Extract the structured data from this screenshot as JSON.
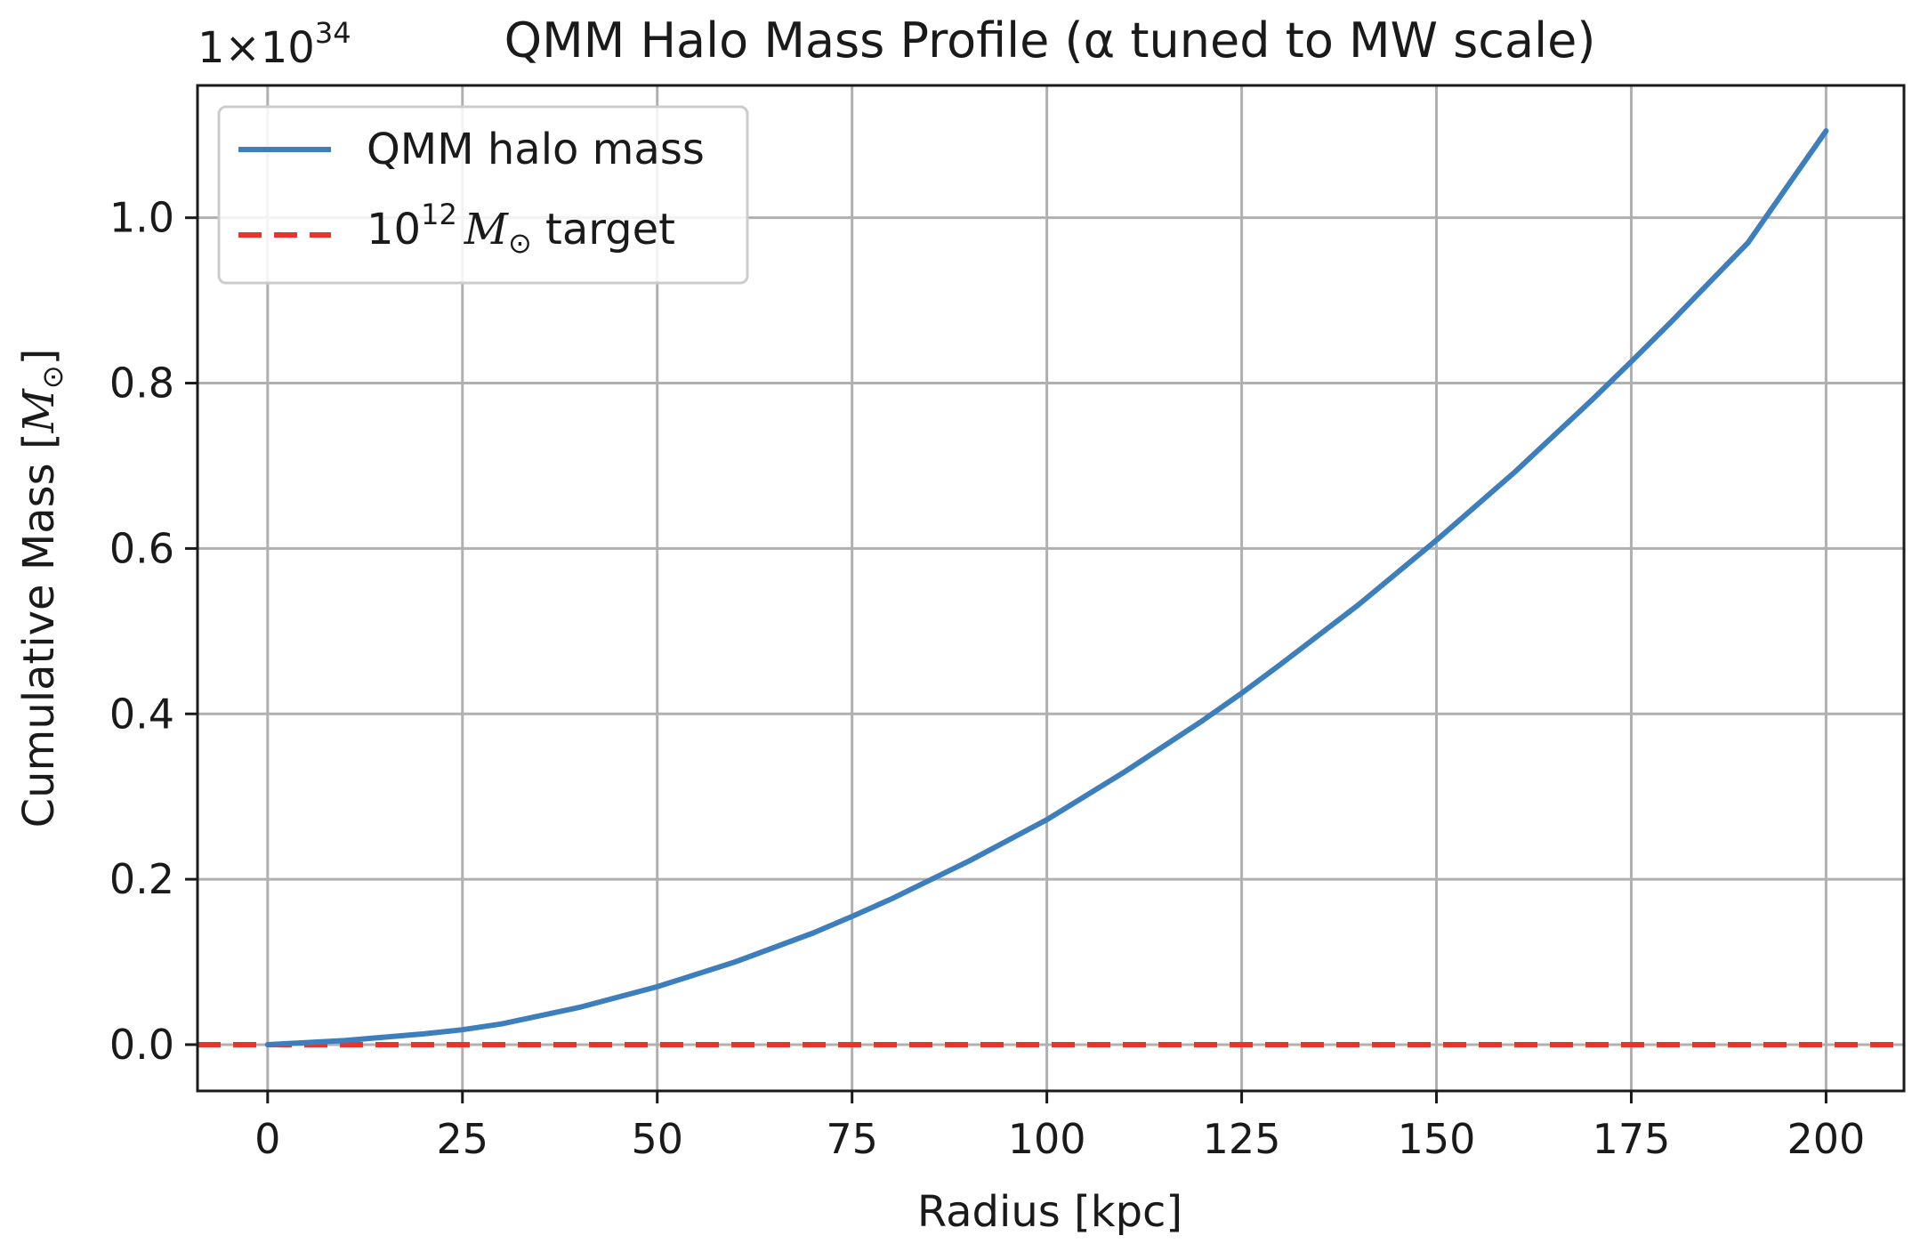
{
  "chart_data": {
    "type": "line",
    "title": "QMM Halo Mass Profile (α tuned to MW scale)",
    "xlabel": "Radius [kpc]",
    "ylabel": "Cumulative Mass [",
    "ylabel_symbol": "M",
    "ylabel_sub": "⊙",
    "ylabel_close": "]",
    "offset_text": {
      "base": "1×10",
      "exponent": "34"
    },
    "xlim": [
      -9,
      210
    ],
    "ylim": [
      -0.056,
      1.16
    ],
    "grid": true,
    "x_ticks": [
      0,
      25,
      50,
      75,
      100,
      125,
      150,
      175,
      200
    ],
    "x_tick_labels": [
      "0",
      "25",
      "50",
      "75",
      "100",
      "125",
      "150",
      "175",
      "200"
    ],
    "y_ticks": [
      0.0,
      0.2,
      0.4,
      0.6,
      0.8,
      1.0
    ],
    "y_tick_labels": [
      "0.0",
      "0.2",
      "0.4",
      "0.6",
      "0.8",
      "1.0"
    ],
    "series": [
      {
        "name": "QMM halo mass",
        "color": "#3d7ebd",
        "style": "solid",
        "x": [
          0,
          10,
          20,
          25,
          30,
          40,
          50,
          60,
          70,
          75,
          80,
          90,
          100,
          110,
          120,
          125,
          130,
          140,
          150,
          160,
          170,
          175,
          180,
          190,
          200
        ],
        "y": [
          0.0,
          0.005,
          0.013,
          0.018,
          0.025,
          0.045,
          0.07,
          0.1,
          0.135,
          0.155,
          0.176,
          0.222,
          0.272,
          0.33,
          0.392,
          0.425,
          0.46,
          0.532,
          0.61,
          0.692,
          0.78,
          0.826,
          0.873,
          0.97,
          1.105
        ]
      },
      {
        "name": "target",
        "legend_base": "10",
        "legend_exponent": "12",
        "legend_symbol": "M",
        "legend_sub": "⊙",
        "legend_suffix": " target",
        "color": "#e8352c",
        "style": "dashed",
        "y_const": 1e-22
      }
    ],
    "legend_position": "top-left"
  }
}
